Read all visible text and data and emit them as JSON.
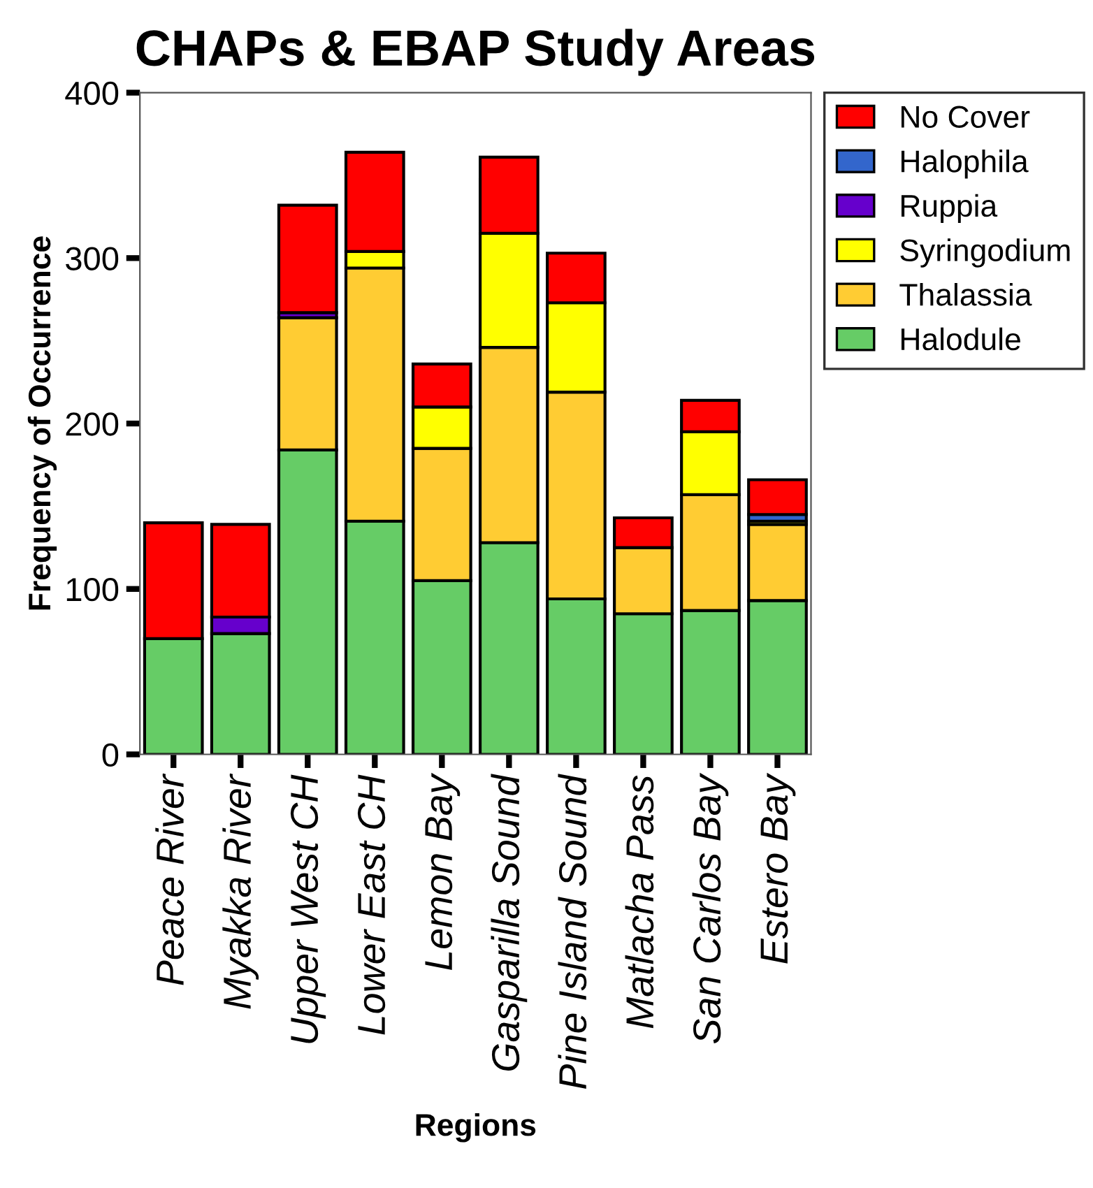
{
  "chart_data": {
    "type": "bar",
    "title": "CHAPs & EBAP Study Areas",
    "xlabel": "Regions",
    "ylabel": "Frequency of Occurrence",
    "categories": [
      "Peace River",
      "Myakka River",
      "Upper West CH",
      "Lower East CH",
      "Lemon Bay",
      "Gasparilla Sound",
      "Pine Island Sound",
      "Matlacha Pass",
      "San Carlos Bay",
      "Estero Bay"
    ],
    "stacked": true,
    "ylim": [
      0,
      400
    ],
    "yticks": [
      0,
      100,
      200,
      300,
      400
    ],
    "grid": false,
    "legend": "top right",
    "series": [
      {
        "name": "Halodule",
        "color": "#66cc66",
        "values": [
          70,
          73,
          184,
          141,
          105,
          128,
          94,
          85,
          87,
          93
        ]
      },
      {
        "name": "Thalassia",
        "color": "#ffcc33",
        "values": [
          null,
          null,
          80,
          153,
          80,
          118,
          125,
          40,
          70,
          46
        ]
      },
      {
        "name": "Syringodium",
        "color": "#ffff00",
        "values": [
          null,
          null,
          null,
          10,
          25,
          69,
          54,
          null,
          38,
          2
        ]
      },
      {
        "name": "Ruppia",
        "color": "#6600cc",
        "values": [
          null,
          10,
          3,
          null,
          null,
          null,
          null,
          null,
          null,
          null
        ]
      },
      {
        "name": "Halophila",
        "color": "#3366cc",
        "values": [
          null,
          null,
          null,
          null,
          null,
          null,
          null,
          null,
          null,
          4
        ]
      },
      {
        "name": "No Cover",
        "color": "#ff0000",
        "values": [
          70,
          56,
          65,
          60,
          26,
          46,
          30,
          18,
          19,
          21
        ]
      }
    ]
  }
}
